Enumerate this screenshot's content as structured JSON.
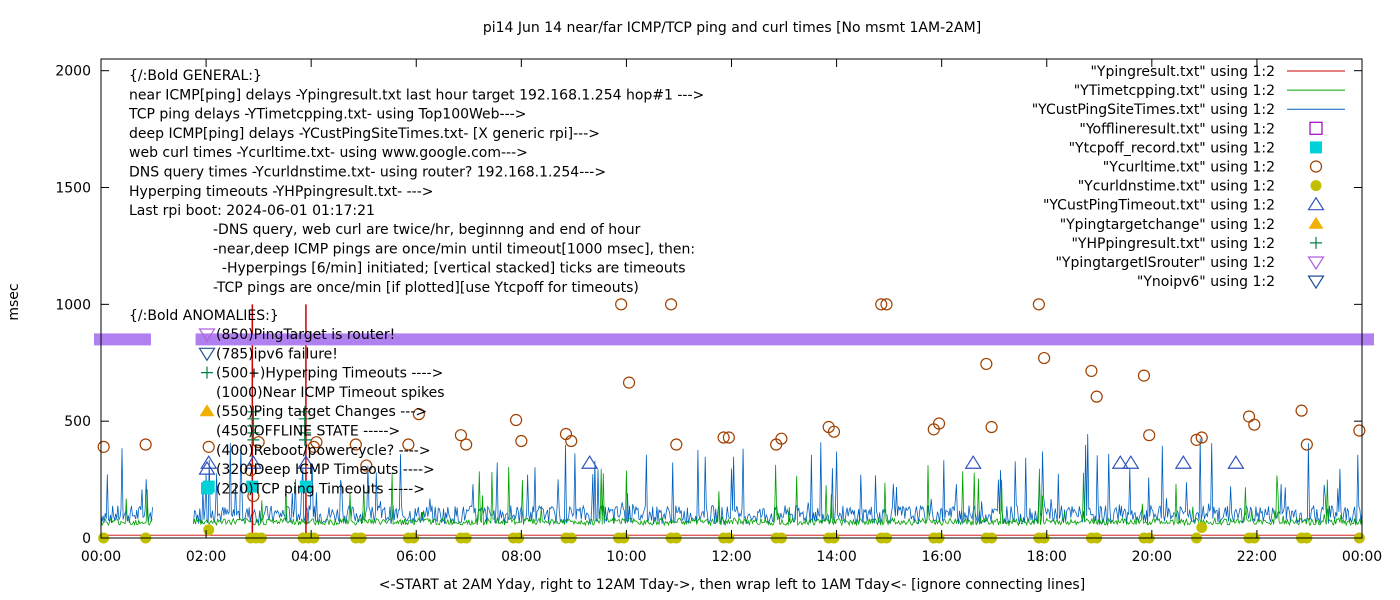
{
  "chart_data": {
    "type": "scatter",
    "title": "pi14 Jun 14  near/far ICMP/TCP ping and curl times [No msmt 1AM-2AM]",
    "xlabel": "<-START at 2AM Yday, right to 12AM Tday->, then wrap left to 1AM Tday<- [ignore connecting lines]",
    "ylabel": "msec",
    "xlim": [
      0,
      24
    ],
    "ylim": [
      0,
      2050
    ],
    "x_ticks": [
      "00:00",
      "02:00",
      "04:00",
      "06:00",
      "08:00",
      "10:00",
      "12:00",
      "14:00",
      "16:00",
      "18:00",
      "20:00",
      "22:00",
      "00:00"
    ],
    "y_ticks": [
      "0",
      "500",
      "1000",
      "1500",
      "2000"
    ],
    "y_tick_values": [
      0,
      500,
      1000,
      1500,
      2000
    ],
    "grid": false,
    "legend_position": "top-right",
    "annotations_general": [
      "{/:Bold GENERAL:}",
      "near ICMP[ping] delays -Ypingresult.txt last hour target 192.168.1.254 hop#1 --->",
      "TCP ping delays -YTimetcpping.txt- using Top100Web--->",
      "deep ICMP[ping] delays -YCustPingSiteTimes.txt- [X generic rpi]--->",
      "web curl times -Ycurltime.txt- using www.google.com--->",
      "DNS query times -Ycurldnstime.txt- using router? 192.168.1.254--->",
      "Hyperping timeouts -YHPpingresult.txt- --->",
      "Last rpi boot: 2024-06-01 01:17:21"
    ],
    "annotations_notes": [
      "-DNS query, web curl are twice/hr, beginnng and end of hour",
      "-near,deep ICMP pings are once/min until timeout[1000 msec], then:",
      "  -Hyperpings [6/min] initiated; [vertical stacked] ticks are timeouts",
      "-TCP pings are once/min [if plotted][use Ytcpoff for timeouts)"
    ],
    "annotations_anomalies_title": "{/:Bold ANOMALIES:}",
    "annotations_anomalies": [
      {
        "text": "(850)PingTarget is router!",
        "marker": "triangle-down-violet"
      },
      {
        "text": "(785)ipv6 failure!",
        "marker": "triangle-down-blue"
      },
      {
        "text": "(500+)Hyperping Timeouts ---->",
        "marker": "plus-green"
      },
      {
        "text": "(1000)Near ICMP Timeout spikes",
        "marker": "none"
      },
      {
        "text": "(550)Ping target Changes --->",
        "marker": "triangle-up-orange"
      },
      {
        "text": "(450)OFFLINE STATE ----->",
        "marker": "none"
      },
      {
        "text": "(400)Reboot/powercycle? ---->",
        "marker": "none"
      },
      {
        "text": "(320)Deep ICMP Timeouts ---->",
        "marker": "triangle-up-blue"
      },
      {
        "text": "(220)TCP ping Timeouts ----->",
        "marker": "square-cyan"
      }
    ],
    "series": [
      {
        "name": "\"Ypingresult.txt\" using 1:2",
        "style": "line",
        "color": "#cc0000"
      },
      {
        "name": "\"YTimetcpping.txt\" using 1:2",
        "style": "line",
        "color": "#00a000"
      },
      {
        "name": "\"YCustPingSiteTimes.txt\" using 1:2",
        "style": "line",
        "color": "#0060c0"
      },
      {
        "name": "\"Yofflineresult.txt\" using 1:2",
        "style": "open-square",
        "color": "#a000c0"
      },
      {
        "name": "\"Ytcpoff_record.txt\" using 1:2",
        "style": "filled-square",
        "color": "#00d0d8"
      },
      {
        "name": "\"Ycurltime.txt\" using 1:2",
        "style": "open-circle",
        "color": "#a04000"
      },
      {
        "name": "\"Ycurldnstime.txt\" using 1:2",
        "style": "filled-circle",
        "color": "#c0c000"
      },
      {
        "name": "\"YCustPingTimeout.txt\" using 1:2",
        "style": "open-triangle-up",
        "color": "#3050c0"
      },
      {
        "name": "\"Ypingtargetchange\" using 1:2",
        "style": "filled-triangle-up",
        "color": "#f0b000"
      },
      {
        "name": "\"YHPpingresult.txt\" using 1:2",
        "style": "plus",
        "color": "#008040"
      },
      {
        "name": "\"YpingtargetISrouter\" using 1:2",
        "style": "open-triangle-down",
        "color": "#b060e0"
      },
      {
        "name": "\"Ynoipv6\" using 1:2",
        "style": "open-triangle-down",
        "color": "#205090"
      }
    ],
    "router_band": {
      "y": 850,
      "color": "#b080f0",
      "gap_x": [
        0.95,
        1.8
      ]
    },
    "near_icmp_spikes": [
      {
        "x": 2.88,
        "y": 1000
      },
      {
        "x": 3.9,
        "y": 1000
      }
    ],
    "curl_points": [
      {
        "x": 0.05,
        "y": 390
      },
      {
        "x": 0.85,
        "y": 400
      },
      {
        "x": 2.05,
        "y": 390
      },
      {
        "x": 2.85,
        "y": 290
      },
      {
        "x": 2.9,
        "y": 180
      },
      {
        "x": 3.0,
        "y": 410
      },
      {
        "x": 4.05,
        "y": 390
      },
      {
        "x": 4.1,
        "y": 410
      },
      {
        "x": 4.85,
        "y": 400
      },
      {
        "x": 5.05,
        "y": 310
      },
      {
        "x": 5.85,
        "y": 400
      },
      {
        "x": 6.05,
        "y": 530
      },
      {
        "x": 6.85,
        "y": 440
      },
      {
        "x": 6.95,
        "y": 400
      },
      {
        "x": 7.9,
        "y": 505
      },
      {
        "x": 8.0,
        "y": 415
      },
      {
        "x": 8.85,
        "y": 445
      },
      {
        "x": 8.95,
        "y": 415
      },
      {
        "x": 9.9,
        "y": 1000
      },
      {
        "x": 10.05,
        "y": 665
      },
      {
        "x": 10.85,
        "y": 1000
      },
      {
        "x": 10.95,
        "y": 400
      },
      {
        "x": 11.85,
        "y": 430
      },
      {
        "x": 11.95,
        "y": 430
      },
      {
        "x": 12.85,
        "y": 400
      },
      {
        "x": 12.95,
        "y": 425
      },
      {
        "x": 13.85,
        "y": 475
      },
      {
        "x": 13.95,
        "y": 455
      },
      {
        "x": 14.85,
        "y": 1000
      },
      {
        "x": 14.95,
        "y": 1000
      },
      {
        "x": 15.85,
        "y": 465
      },
      {
        "x": 15.95,
        "y": 490
      },
      {
        "x": 16.85,
        "y": 745
      },
      {
        "x": 16.95,
        "y": 475
      },
      {
        "x": 17.85,
        "y": 1000
      },
      {
        "x": 17.95,
        "y": 770
      },
      {
        "x": 18.85,
        "y": 715
      },
      {
        "x": 18.95,
        "y": 605
      },
      {
        "x": 19.85,
        "y": 695
      },
      {
        "x": 19.95,
        "y": 440
      },
      {
        "x": 20.85,
        "y": 420
      },
      {
        "x": 20.95,
        "y": 430
      },
      {
        "x": 21.85,
        "y": 520
      },
      {
        "x": 21.95,
        "y": 485
      },
      {
        "x": 22.85,
        "y": 545
      },
      {
        "x": 22.95,
        "y": 400
      },
      {
        "x": 23.95,
        "y": 460
      }
    ],
    "dns_points": [
      {
        "x": 0.05,
        "y": 0
      },
      {
        "x": 0.85,
        "y": 0
      },
      {
        "x": 2.05,
        "y": 35
      },
      {
        "x": 2.85,
        "y": 0
      },
      {
        "x": 2.95,
        "y": 0
      },
      {
        "x": 3.05,
        "y": 0
      },
      {
        "x": 3.85,
        "y": 0
      },
      {
        "x": 3.95,
        "y": 0
      },
      {
        "x": 4.05,
        "y": 0
      },
      {
        "x": 4.85,
        "y": 0
      },
      {
        "x": 4.95,
        "y": 0
      },
      {
        "x": 5.85,
        "y": 0
      },
      {
        "x": 5.95,
        "y": 0
      },
      {
        "x": 6.85,
        "y": 0
      },
      {
        "x": 6.95,
        "y": 0
      },
      {
        "x": 7.85,
        "y": 0
      },
      {
        "x": 7.95,
        "y": 0
      },
      {
        "x": 8.85,
        "y": 0
      },
      {
        "x": 8.95,
        "y": 0
      },
      {
        "x": 9.85,
        "y": 0
      },
      {
        "x": 9.95,
        "y": 0
      },
      {
        "x": 10.85,
        "y": 0
      },
      {
        "x": 10.95,
        "y": 0
      },
      {
        "x": 11.85,
        "y": 0
      },
      {
        "x": 11.95,
        "y": 0
      },
      {
        "x": 12.85,
        "y": 0
      },
      {
        "x": 12.95,
        "y": 0
      },
      {
        "x": 13.85,
        "y": 0
      },
      {
        "x": 13.95,
        "y": 0
      },
      {
        "x": 14.85,
        "y": 0
      },
      {
        "x": 14.95,
        "y": 0
      },
      {
        "x": 15.85,
        "y": 0
      },
      {
        "x": 15.95,
        "y": 0
      },
      {
        "x": 16.85,
        "y": 0
      },
      {
        "x": 16.95,
        "y": 0
      },
      {
        "x": 17.85,
        "y": 0
      },
      {
        "x": 17.95,
        "y": 0
      },
      {
        "x": 18.85,
        "y": 0
      },
      {
        "x": 18.95,
        "y": 0
      },
      {
        "x": 19.85,
        "y": 0
      },
      {
        "x": 19.95,
        "y": 0
      },
      {
        "x": 20.85,
        "y": 0
      },
      {
        "x": 20.95,
        "y": 45
      },
      {
        "x": 21.85,
        "y": 0
      },
      {
        "x": 21.95,
        "y": 0
      },
      {
        "x": 22.85,
        "y": 0
      },
      {
        "x": 22.95,
        "y": 0
      },
      {
        "x": 23.95,
        "y": 0
      }
    ],
    "deep_timeout_points": [
      {
        "x": 2.05,
        "y": 320
      },
      {
        "x": 2.9,
        "y": 320
      },
      {
        "x": 3.9,
        "y": 320
      },
      {
        "x": 9.3,
        "y": 320
      },
      {
        "x": 16.6,
        "y": 320
      },
      {
        "x": 19.4,
        "y": 320
      },
      {
        "x": 19.6,
        "y": 320
      },
      {
        "x": 20.6,
        "y": 320
      },
      {
        "x": 21.6,
        "y": 320
      }
    ],
    "tcp_off_points": [
      {
        "x": 2.05,
        "y": 220
      },
      {
        "x": 2.88,
        "y": 220
      },
      {
        "x": 3.9,
        "y": 220
      }
    ],
    "hyperping_points": [
      {
        "x": 2.9,
        "y": 540
      },
      {
        "x": 2.9,
        "y": 510
      },
      {
        "x": 2.9,
        "y": 480
      },
      {
        "x": 2.9,
        "y": 450
      },
      {
        "x": 2.9,
        "y": 420
      },
      {
        "x": 3.88,
        "y": 540
      },
      {
        "x": 3.88,
        "y": 510
      },
      {
        "x": 3.88,
        "y": 480
      },
      {
        "x": 3.88,
        "y": 450
      },
      {
        "x": 3.88,
        "y": 420
      }
    ]
  }
}
